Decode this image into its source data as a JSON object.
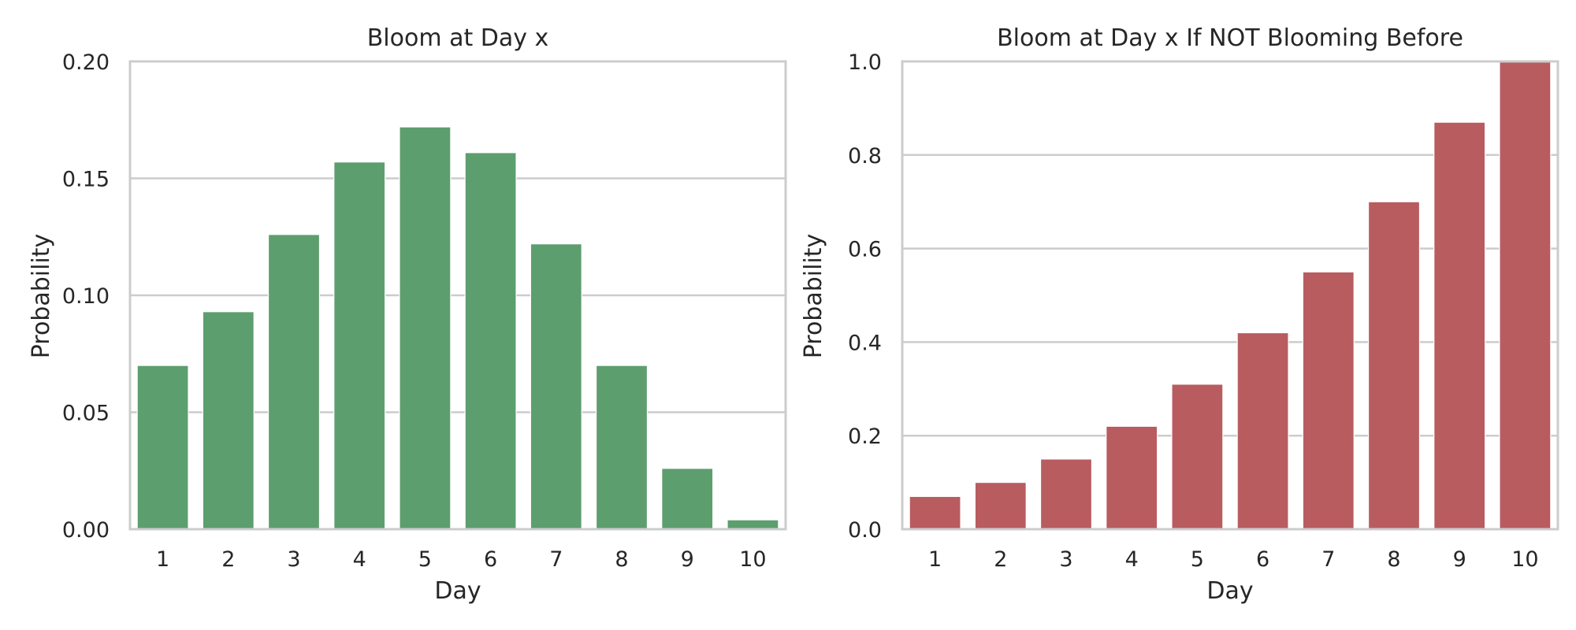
{
  "chart_data": [
    {
      "type": "bar",
      "title": "Bloom at Day x",
      "xlabel": "Day",
      "ylabel": "Probability",
      "categories": [
        "1",
        "2",
        "3",
        "4",
        "5",
        "6",
        "7",
        "8",
        "9",
        "10"
      ],
      "values": [
        0.07,
        0.093,
        0.126,
        0.157,
        0.172,
        0.161,
        0.122,
        0.07,
        0.026,
        0.004
      ],
      "ylim": [
        0,
        0.2
      ],
      "yticks": [
        "0.00",
        "0.05",
        "0.10",
        "0.15",
        "0.20"
      ],
      "ytick_values": [
        0,
        0.05,
        0.1,
        0.15,
        0.2
      ],
      "color": "#5d9e6e",
      "grid": true,
      "legend": false
    },
    {
      "type": "bar",
      "title": "Bloom at Day x If NOT Blooming Before",
      "xlabel": "Day",
      "ylabel": "Probability",
      "categories": [
        "1",
        "2",
        "3",
        "4",
        "5",
        "6",
        "7",
        "8",
        "9",
        "10"
      ],
      "values": [
        0.07,
        0.1,
        0.15,
        0.22,
        0.31,
        0.42,
        0.55,
        0.7,
        0.87,
        1.0
      ],
      "ylim": [
        0,
        1.0
      ],
      "yticks": [
        "0.0",
        "0.2",
        "0.4",
        "0.6",
        "0.8",
        "1.0"
      ],
      "ytick_values": [
        0,
        0.2,
        0.4,
        0.6,
        0.8,
        1.0
      ],
      "color": "#b85c60",
      "grid": true,
      "legend": false
    }
  ]
}
